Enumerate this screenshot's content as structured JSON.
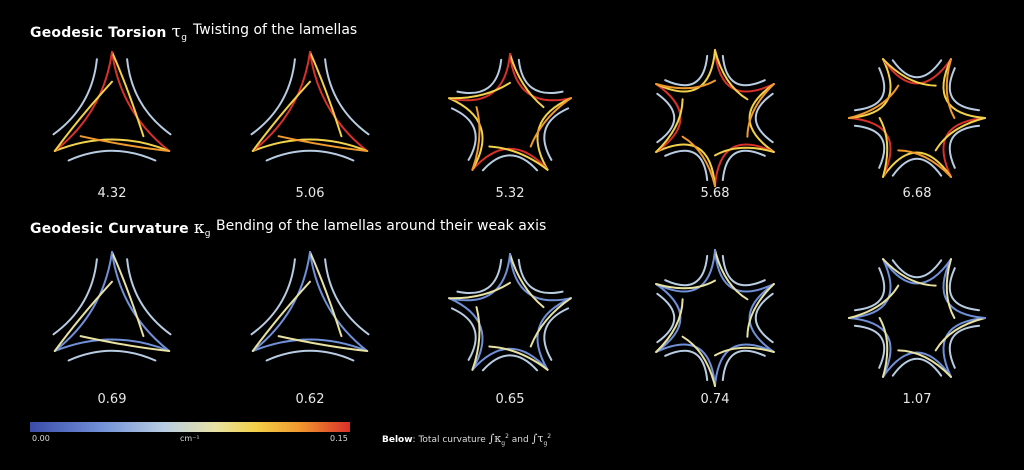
{
  "rows": [
    {
      "id": "torsion",
      "title": "Geodesic Torsion",
      "symbol": "τ",
      "symbol_sub": "g",
      "subtitle": "Twisting of the lamellas",
      "values": [
        "4.32",
        "5.06",
        "5.32",
        "5.68",
        "6.68"
      ]
    },
    {
      "id": "curvature",
      "title": "Geodesic Curvature",
      "symbol": "κ",
      "symbol_sub": "g",
      "subtitle": "Bending of the lamellas around their weak axis",
      "values": [
        "0.69",
        "0.62",
        "0.65",
        "0.74",
        "1.07"
      ]
    }
  ],
  "colorbar": {
    "min_label": "0.00",
    "unit_label": "cm⁻¹",
    "max_label": "0.15",
    "colors": [
      "#3b4ba8",
      "#7090d8",
      "#b9cde2",
      "#e8e2a2",
      "#f2d24a",
      "#f09a2e",
      "#d9302a"
    ]
  },
  "footnote": {
    "lead": "Below",
    "text": ": Total curvature",
    "int_k": "∫κ",
    "int_k_sub": "g",
    "and": "and",
    "int_t": "∫τ",
    "int_t_sub": "g",
    "power": "2"
  }
}
